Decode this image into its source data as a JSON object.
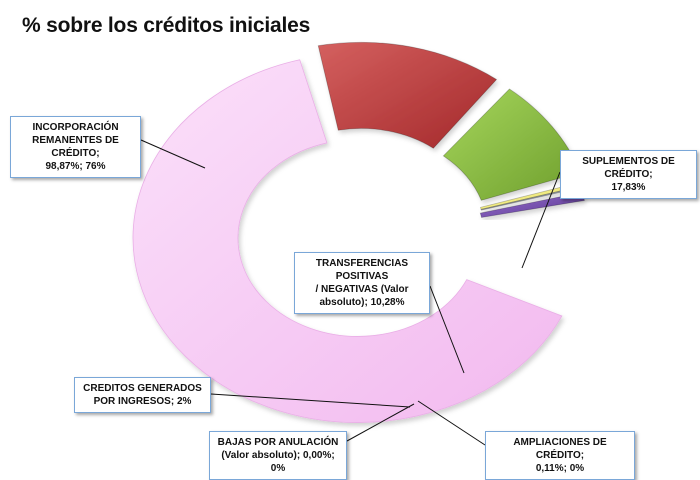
{
  "title": "% sobre los créditos iniciales",
  "chart_data": {
    "type": "pie",
    "variant": "exploded-donut-3d",
    "legend": "none",
    "slices": [
      {
        "key": "incorporacion",
        "label_lines": [
          "INCORPORACIÓN",
          "REMANENTES DE CRÉDITO;",
          "98,87%; 76%"
        ],
        "value": 76,
        "color": "#f7c8f5"
      },
      {
        "key": "suplementos",
        "label_lines": [
          "SUPLEMENTOS DE CRÉDITO;",
          "17,83%"
        ],
        "value": 17.83,
        "color": "#c0393b"
      },
      {
        "key": "transferencias",
        "label_lines": [
          "TRANSFERENCIAS POSITIVAS",
          "/ NEGATIVAS (Valor",
          "absoluto); 10,28%"
        ],
        "value": 10.28,
        "color": "#8cc33f"
      },
      {
        "key": "ampliaciones",
        "label_lines": [
          "AMPLIACIONES DE CRÉDITO;",
          "0,11%; 0%"
        ],
        "value": 0.11,
        "color": "#f4f08a"
      },
      {
        "key": "bajas",
        "label_lines": [
          "BAJAS POR ANULACIÓN",
          "(Valor absoluto); 0,00%; 0%"
        ],
        "value": 0.0,
        "color": "#9aa0a8"
      },
      {
        "key": "creditos",
        "label_lines": [
          "CREDITOS GENERADOS",
          "POR INGRESOS; 2%"
        ],
        "value": 2,
        "color": "#7a4fb5"
      }
    ]
  }
}
